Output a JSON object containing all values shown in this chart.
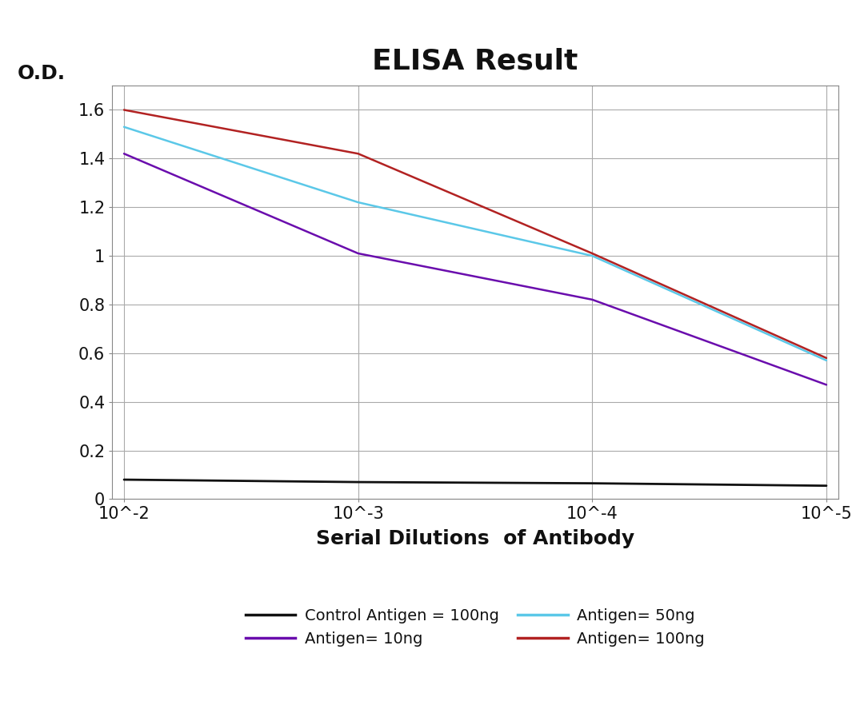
{
  "title": "ELISA Result",
  "od_label": "O.D.",
  "xlabel": "Serial Dilutions  of Antibody",
  "ylim": [
    0,
    1.7
  ],
  "yticks": [
    0,
    0.2,
    0.4,
    0.6,
    0.8,
    1.0,
    1.2,
    1.4,
    1.6
  ],
  "ytick_labels": [
    "0",
    "0.2",
    "0.4",
    "0.6",
    "0.8",
    "1",
    "1.2",
    "1.4",
    "1.6"
  ],
  "x_positions": [
    0,
    1,
    2,
    3
  ],
  "x_tick_labels": [
    "10^-2",
    "10^-3",
    "10^-4",
    "10^-5"
  ],
  "background_color": "#ffffff",
  "plot_bg_color": "#ffffff",
  "grid_color": "#aaaaaa",
  "series": [
    {
      "label": "Control Antigen = 100ng",
      "color": "#111111",
      "linewidth": 2.0,
      "values": [
        0.08,
        0.07,
        0.065,
        0.055
      ]
    },
    {
      "label": "Antigen= 10ng",
      "color": "#6a0dad",
      "linewidth": 1.8,
      "values": [
        1.42,
        1.01,
        0.82,
        0.47
      ]
    },
    {
      "label": "Antigen= 50ng",
      "color": "#5bc8e8",
      "linewidth": 1.8,
      "values": [
        1.53,
        1.22,
        1.0,
        0.57
      ]
    },
    {
      "label": "Antigen= 100ng",
      "color": "#b22222",
      "linewidth": 1.8,
      "values": [
        1.6,
        1.42,
        1.01,
        0.58
      ]
    }
  ],
  "legend_order": [
    0,
    1,
    2,
    3
  ],
  "title_fontsize": 26,
  "axis_label_fontsize": 18,
  "tick_fontsize": 15,
  "od_fontsize": 18,
  "legend_fontsize": 14
}
